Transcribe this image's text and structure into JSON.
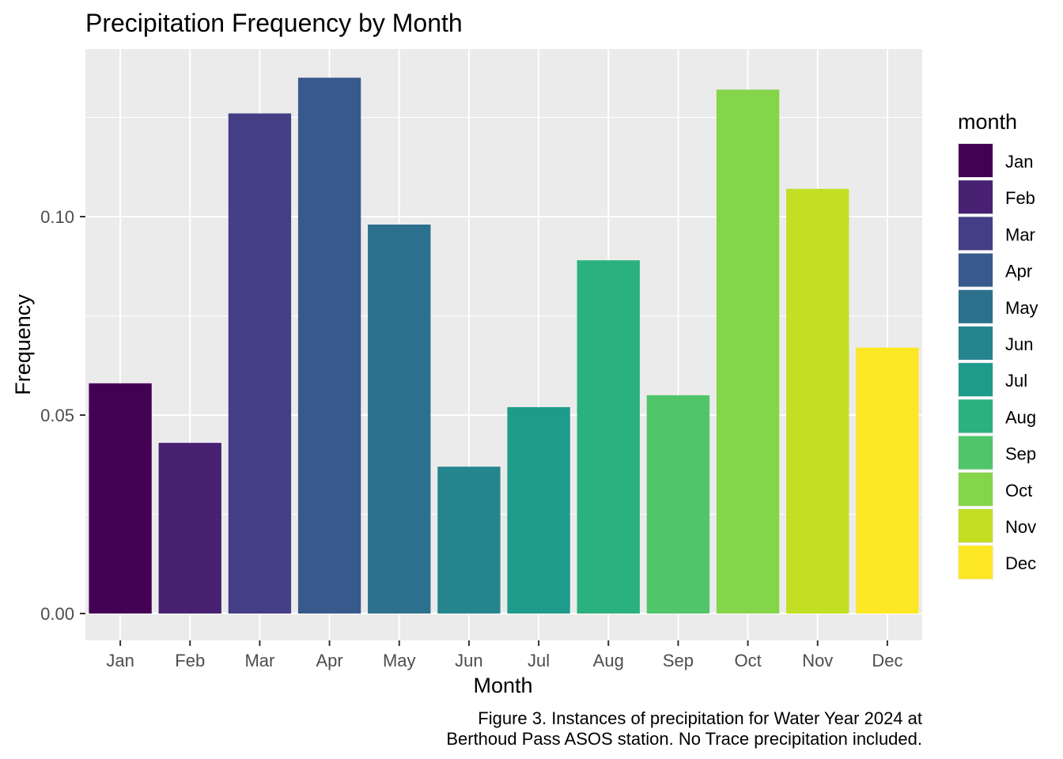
{
  "chart_data": {
    "type": "bar",
    "title": "Precipitation Frequency by Month",
    "xlabel": "Month",
    "ylabel": "Frequency",
    "categories": [
      "Jan",
      "Feb",
      "Mar",
      "Apr",
      "May",
      "Jun",
      "Jul",
      "Aug",
      "Sep",
      "Oct",
      "Nov",
      "Dec"
    ],
    "values": [
      0.058,
      0.043,
      0.126,
      0.135,
      0.098,
      0.037,
      0.052,
      0.089,
      0.055,
      0.132,
      0.107,
      0.067
    ],
    "colors": [
      "#440154",
      "#482173",
      "#433E85",
      "#38598C",
      "#2D708E",
      "#25858E",
      "#1E9B8A",
      "#2BB07F",
      "#51C56A",
      "#85D54A",
      "#C2DF23",
      "#FDE725"
    ],
    "ylim": [
      0,
      0.14
    ],
    "yticks": [
      0.0,
      0.05,
      0.1
    ],
    "ytick_labels": [
      "0.00",
      "0.05",
      "0.10"
    ],
    "grid": true,
    "legend": {
      "title": "month",
      "position": "right",
      "entries": [
        "Jan",
        "Feb",
        "Mar",
        "Apr",
        "May",
        "Jun",
        "Jul",
        "Aug",
        "Sep",
        "Oct",
        "Nov",
        "Dec"
      ]
    },
    "caption": [
      "Figure 3. Instances of precipitation for Water Year 2024 at",
      "Berthoud Pass ASOS station. No Trace precipitation included."
    ]
  }
}
